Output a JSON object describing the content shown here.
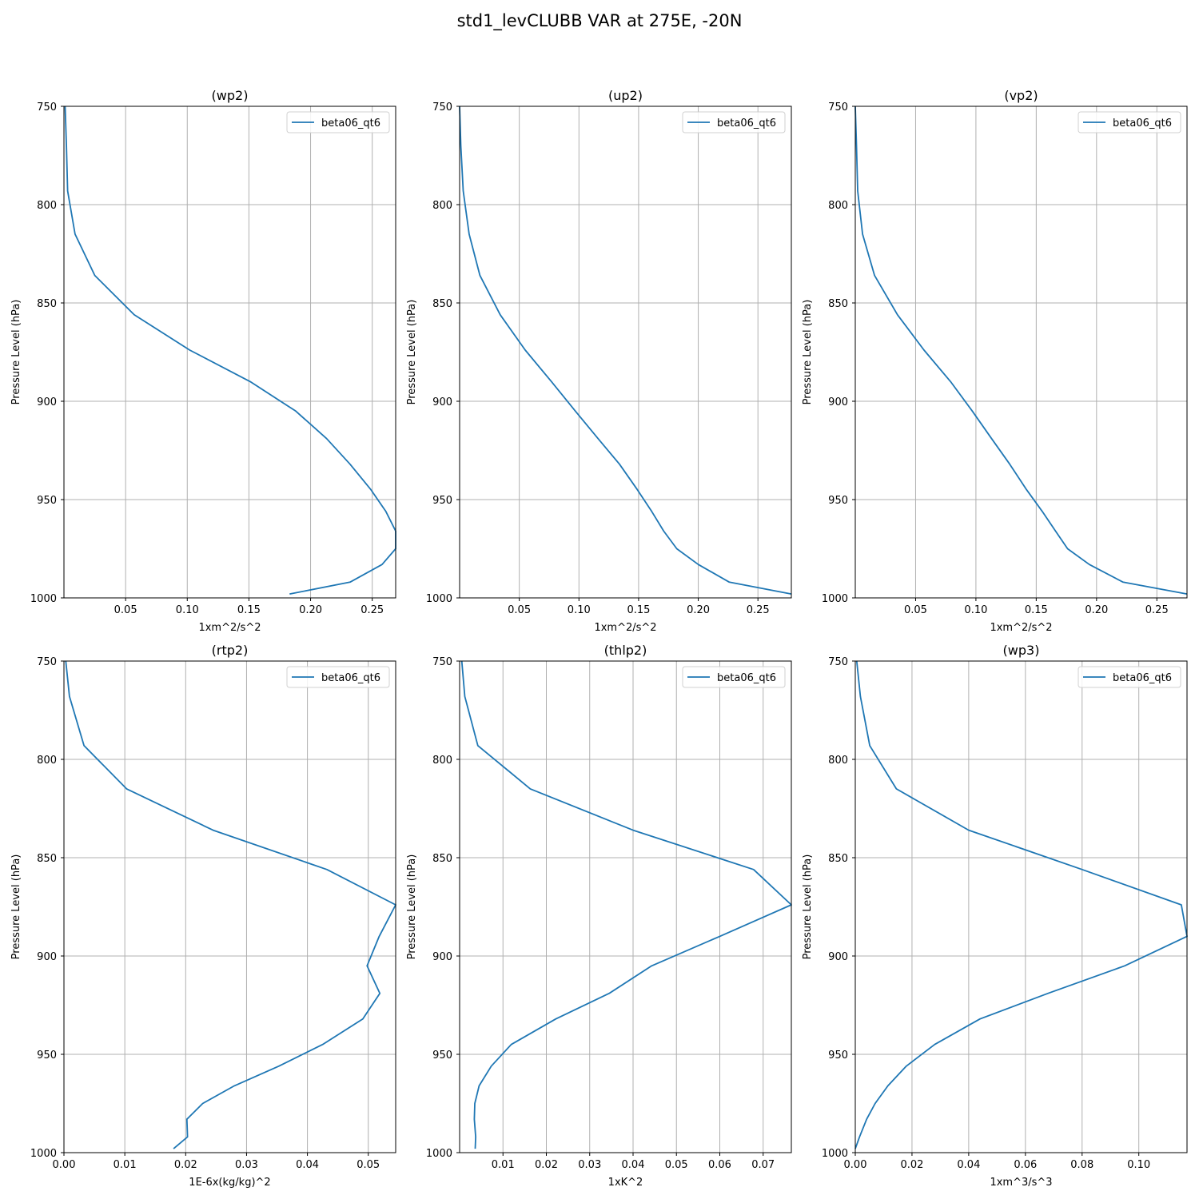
{
  "suptitle": "std1_levCLUBB VAR at 275E, -20N",
  "colors": {
    "line": "#1f77b4",
    "grid": "#b0b0b0",
    "axis": "#000000"
  },
  "chart_data": [
    {
      "type": "line",
      "title": "(wp2)",
      "xlabel": "1xm^2/s^2",
      "ylabel": "Pressure Level (hPa)",
      "xlim": [
        0.0,
        0.269
      ],
      "ylim": [
        1000,
        750
      ],
      "xticks": [
        0.05,
        0.1,
        0.15,
        0.2,
        0.25
      ],
      "xtick_labels": [
        "0.05",
        "0.10",
        "0.15",
        "0.20",
        "0.25"
      ],
      "yticks": [
        750,
        800,
        850,
        900,
        950,
        1000
      ],
      "grid": true,
      "legend_position": "top-right",
      "series": [
        {
          "name": "beta06_qt6",
          "x": [
            0.001,
            0.002,
            0.003,
            0.009,
            0.025,
            0.057,
            0.102,
            0.151,
            0.188,
            0.213,
            0.232,
            0.249,
            0.261,
            0.269,
            0.269,
            0.258,
            0.232,
            0.183
          ],
          "y": [
            750,
            770,
            793,
            815,
            836,
            856,
            874,
            890,
            905,
            919,
            932,
            945,
            956,
            966,
            975,
            983,
            992,
            998
          ]
        }
      ]
    },
    {
      "type": "line",
      "title": "(up2)",
      "xlabel": "1xm^2/s^2",
      "ylabel": "Pressure Level (hPa)",
      "xlim": [
        0.0,
        0.278
      ],
      "ylim": [
        1000,
        750
      ],
      "xticks": [
        0.05,
        0.1,
        0.15,
        0.2,
        0.25
      ],
      "xtick_labels": [
        "0.05",
        "0.10",
        "0.15",
        "0.20",
        "0.25"
      ],
      "yticks": [
        750,
        800,
        850,
        900,
        950,
        1000
      ],
      "grid": true,
      "legend_position": "top-right",
      "series": [
        {
          "name": "beta06_qt6",
          "x": [
            0.0,
            0.001,
            0.003,
            0.008,
            0.017,
            0.034,
            0.055,
            0.077,
            0.097,
            0.116,
            0.134,
            0.149,
            0.161,
            0.171,
            0.182,
            0.2,
            0.226,
            0.278
          ],
          "y": [
            750,
            770,
            793,
            815,
            836,
            856,
            874,
            890,
            905,
            919,
            932,
            945,
            956,
            966,
            975,
            983,
            992,
            998
          ]
        }
      ]
    },
    {
      "type": "line",
      "title": "(vp2)",
      "xlabel": "1xm^2/s^2",
      "ylabel": "Pressure Level (hPa)",
      "xlim": [
        0.0,
        0.275
      ],
      "ylim": [
        1000,
        750
      ],
      "xticks": [
        0.05,
        0.1,
        0.15,
        0.2,
        0.25
      ],
      "xtick_labels": [
        "0.05",
        "0.10",
        "0.15",
        "0.20",
        "0.25"
      ],
      "yticks": [
        750,
        800,
        850,
        900,
        950,
        1000
      ],
      "grid": true,
      "legend_position": "top-right",
      "series": [
        {
          "name": "beta06_qt6",
          "x": [
            0.0,
            0.001,
            0.002,
            0.006,
            0.016,
            0.035,
            0.057,
            0.079,
            0.097,
            0.113,
            0.128,
            0.142,
            0.155,
            0.166,
            0.176,
            0.194,
            0.222,
            0.275
          ],
          "y": [
            750,
            770,
            793,
            815,
            836,
            856,
            874,
            890,
            905,
            919,
            932,
            945,
            956,
            966,
            975,
            983,
            992,
            998
          ]
        }
      ]
    },
    {
      "type": "line",
      "title": "(rtp2)",
      "xlabel": "1E-6x(kg/kg)^2",
      "ylabel": "Pressure Level (hPa)",
      "xlim": [
        0.0,
        0.0545
      ],
      "ylim": [
        1000,
        750
      ],
      "xticks": [
        0.0,
        0.01,
        0.02,
        0.03,
        0.04,
        0.05
      ],
      "xtick_labels": [
        "0.00",
        "0.01",
        "0.02",
        "0.03",
        "0.04",
        "0.05"
      ],
      "yticks": [
        750,
        800,
        850,
        900,
        950,
        1000
      ],
      "grid": true,
      "legend_position": "top-right",
      "series": [
        {
          "name": "beta06_qt6",
          "x": [
            0.0003,
            0.0009,
            0.0033,
            0.0103,
            0.0245,
            0.0432,
            0.0545,
            0.0518,
            0.0498,
            0.0519,
            0.0491,
            0.0425,
            0.0353,
            0.028,
            0.0228,
            0.0202,
            0.0203,
            0.018
          ],
          "y": [
            750,
            768,
            793,
            815,
            836,
            856,
            874,
            890,
            905,
            919,
            932,
            945,
            956,
            966,
            975,
            983,
            992,
            998
          ]
        }
      ]
    },
    {
      "type": "line",
      "title": "(thlp2)",
      "xlabel": "1xK^2",
      "ylabel": "Pressure Level (hPa)",
      "xlim": [
        0.0,
        0.0765
      ],
      "ylim": [
        1000,
        750
      ],
      "xticks": [
        0.01,
        0.02,
        0.03,
        0.04,
        0.05,
        0.06,
        0.07
      ],
      "xtick_labels": [
        "0.01",
        "0.02",
        "0.03",
        "0.04",
        "0.05",
        "0.06",
        "0.07"
      ],
      "yticks": [
        750,
        800,
        850,
        900,
        950,
        1000
      ],
      "grid": true,
      "legend_position": "top-right",
      "series": [
        {
          "name": "beta06_qt6",
          "x": [
            0.0005,
            0.0012,
            0.0042,
            0.0163,
            0.04,
            0.0678,
            0.0765,
            0.06,
            0.0443,
            0.0345,
            0.0222,
            0.0119,
            0.0073,
            0.0045,
            0.0035,
            0.0034,
            0.0037,
            0.0036
          ],
          "y": [
            750,
            768,
            793,
            815,
            836,
            856,
            874,
            890,
            905,
            919,
            932,
            945,
            956,
            966,
            975,
            983,
            992,
            998
          ]
        }
      ]
    },
    {
      "type": "line",
      "title": "(wp3)",
      "xlabel": "1xm^3/s^3",
      "ylabel": "Pressure Level (hPa)",
      "xlim": [
        0.0,
        0.117
      ],
      "ylim": [
        1000,
        750
      ],
      "xticks": [
        0.0,
        0.02,
        0.04,
        0.06,
        0.08,
        0.1
      ],
      "xtick_labels": [
        "0.00",
        "0.02",
        "0.04",
        "0.06",
        "0.08",
        "0.10"
      ],
      "yticks": [
        750,
        800,
        850,
        900,
        950,
        1000
      ],
      "grid": true,
      "legend_position": "top-right",
      "series": [
        {
          "name": "beta06_qt6",
          "x": [
            0.0005,
            0.0018,
            0.0051,
            0.0145,
            0.04,
            0.08,
            0.115,
            0.117,
            0.095,
            0.068,
            0.044,
            0.028,
            0.018,
            0.0115,
            0.007,
            0.004,
            0.0015,
            0.0
          ],
          "y": [
            750,
            768,
            793,
            815,
            836,
            856,
            874,
            890,
            905,
            919,
            932,
            945,
            956,
            966,
            975,
            983,
            992,
            998
          ]
        }
      ]
    }
  ]
}
